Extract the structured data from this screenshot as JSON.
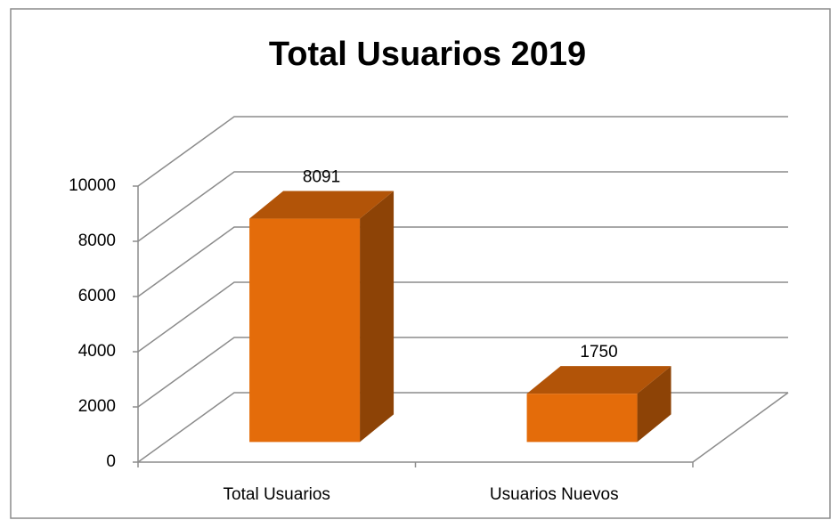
{
  "chart_data": {
    "type": "bar",
    "title": "Total Usuarios 2019",
    "categories": [
      "Total Usuarios",
      "Usuarios Nuevos"
    ],
    "values": [
      8091,
      1750
    ],
    "color": "#e46c0a",
    "ylim": [
      0,
      10000
    ],
    "yticks": [
      0,
      2000,
      4000,
      6000,
      8000,
      10000
    ],
    "grid": true
  }
}
